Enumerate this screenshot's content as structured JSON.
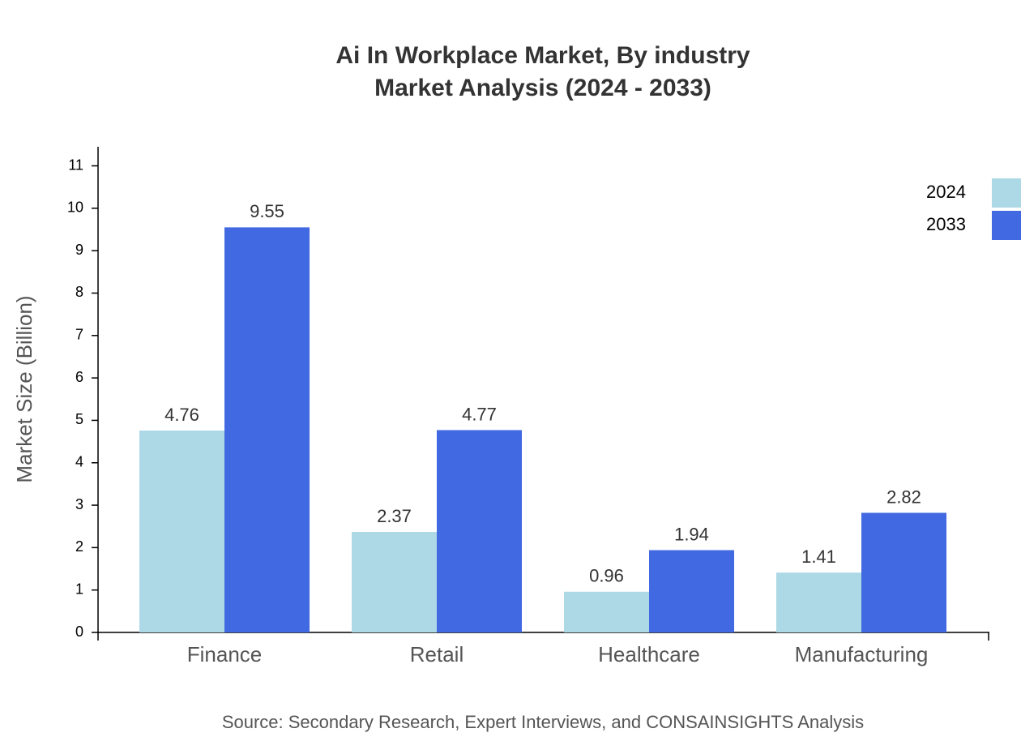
{
  "chart_data": {
    "type": "bar",
    "title": [
      "Ai In Workplace Market, By industry",
      "Market Analysis (2024 - 2033)"
    ],
    "y_label": "Market Size (Billion)",
    "source": "Source: Secondary Research, Expert Interviews, and CONSAINSIGHTS Analysis",
    "categories": [
      "Finance",
      "Retail",
      "Healthcare",
      "Manufacturing"
    ],
    "series": [
      {
        "name": "2024",
        "color": "#add8e6",
        "values": [
          4.76,
          2.37,
          0.96,
          1.41
        ]
      },
      {
        "name": "2033",
        "color": "#4169e1",
        "values": [
          9.55,
          4.77,
          1.94,
          2.82
        ]
      }
    ],
    "ylim": [
      0,
      11.45
    ],
    "yticks": [
      0,
      1,
      2,
      3,
      4,
      5,
      6,
      7,
      8,
      9,
      10,
      11
    ],
    "legend": "top-right"
  }
}
